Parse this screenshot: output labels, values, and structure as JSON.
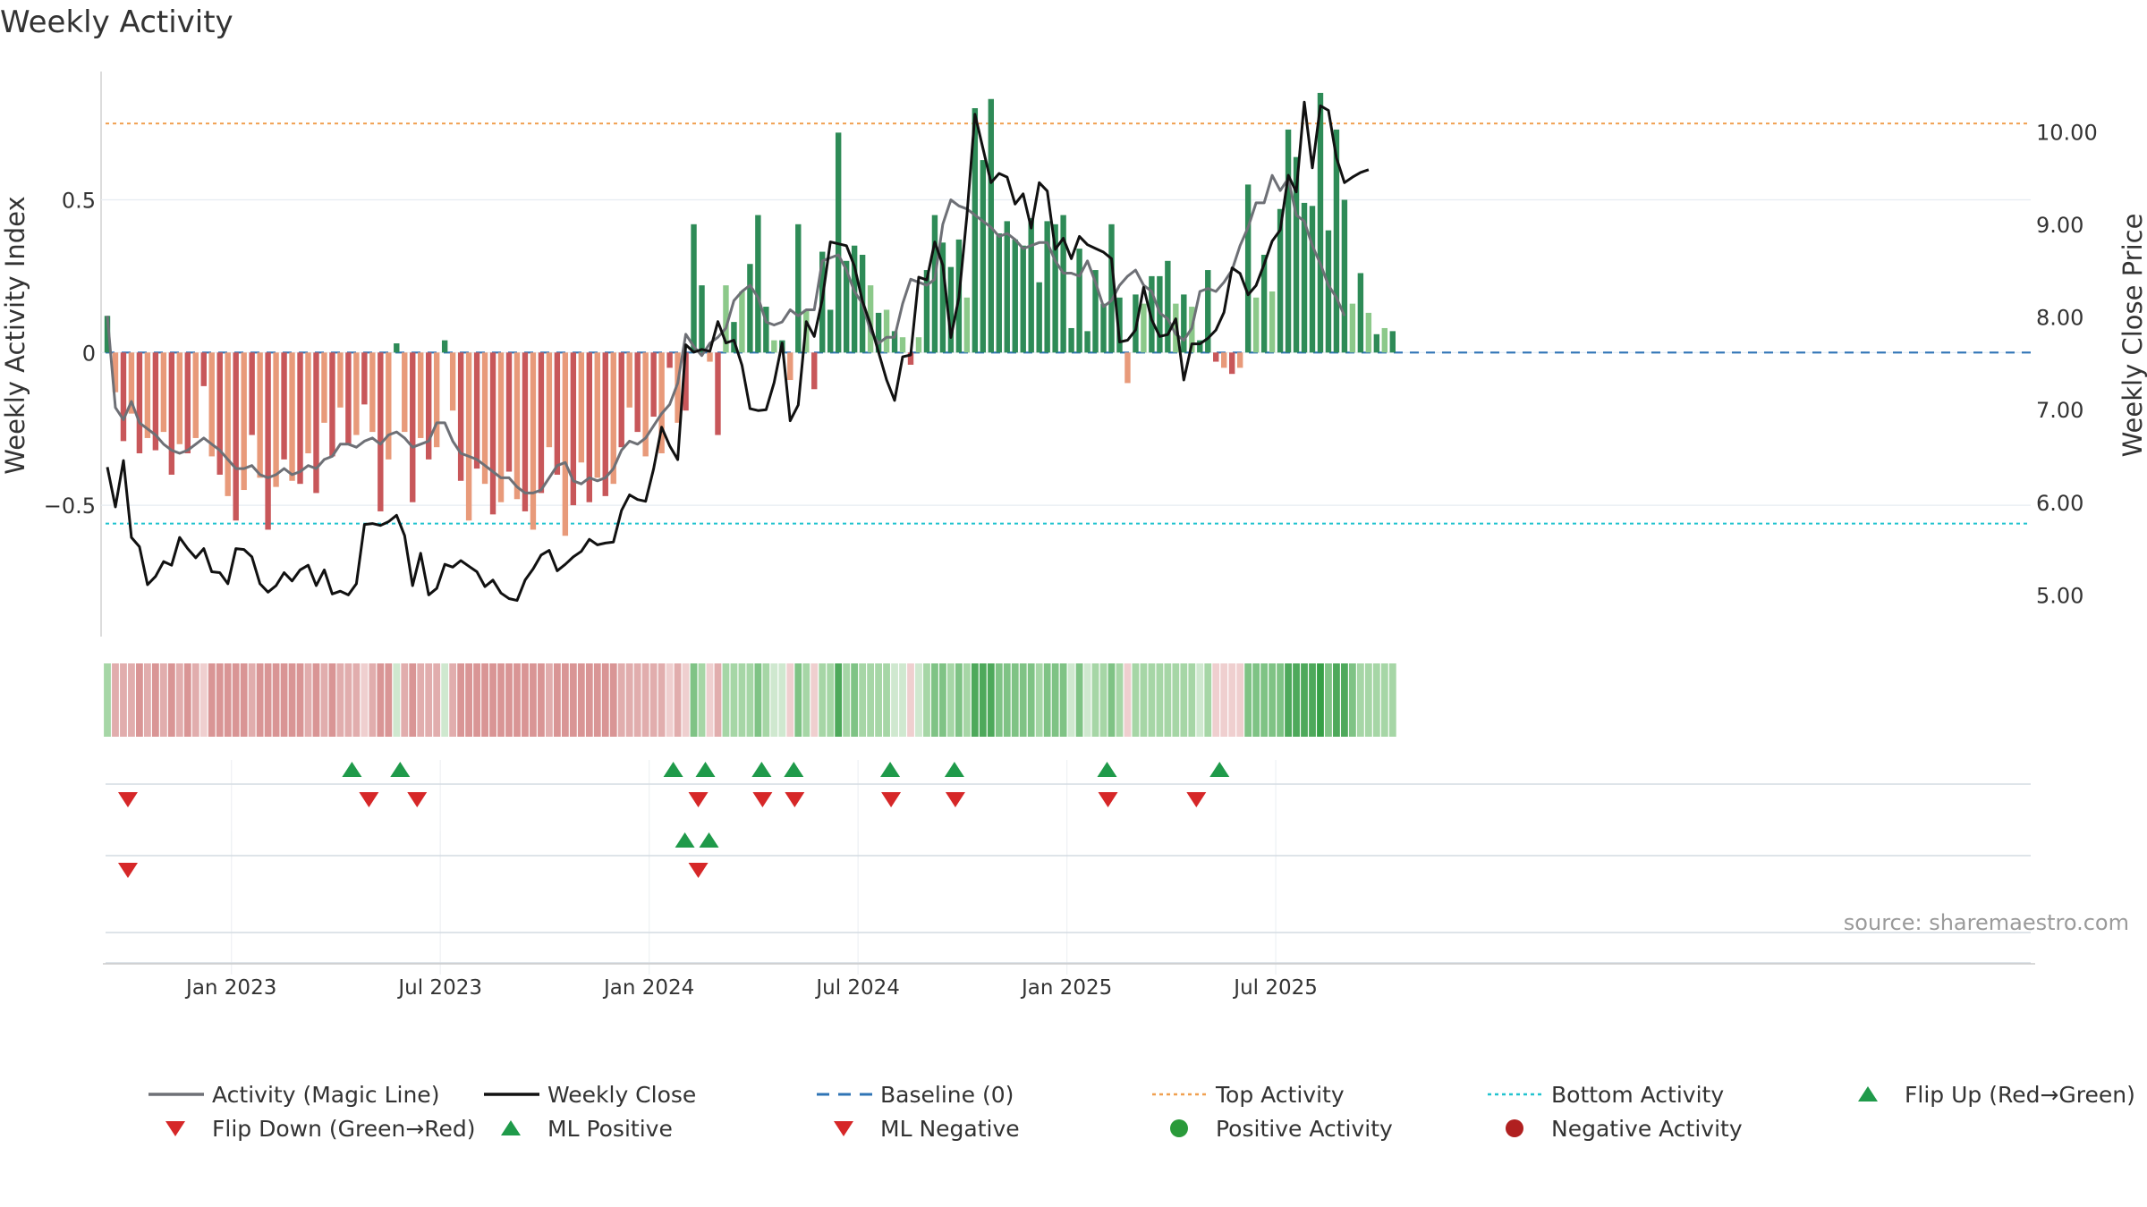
{
  "title": "Weekly Activity",
  "source": "source: sharemaestro.com",
  "colors": {
    "pos_strong": "#2e8b57",
    "pos_light": "#8cc98a",
    "neg_strong": "#c8575a",
    "neg_light": "#e89a7a",
    "magic_line": "#6e7076",
    "close_line": "#111111",
    "baseline": "#2f74b5",
    "top_line": "#f0a050",
    "bottom_line": "#22c3cf",
    "flip_up": "#1f9a4a",
    "flip_down": "#d62728",
    "pos_activity": "#2a9a3a",
    "neg_activity": "#b02020"
  },
  "chart_data": {
    "type": "bar+line",
    "title": "Weekly Activity",
    "ylabel_left": "Weekly Activity Index",
    "ylabel_right": "Weekly Close Price",
    "ylim_left": [
      -0.93,
      0.92
    ],
    "ylim_right": [
      4.55,
      10.65
    ],
    "yticks_left": [
      {
        "v": 0.5,
        "label": "0.5"
      },
      {
        "v": 0,
        "label": "0"
      },
      {
        "v": -0.5,
        "label": "−0.5"
      }
    ],
    "yticks_right": [
      {
        "v": 10,
        "label": "10.00"
      },
      {
        "v": 9,
        "label": "9.00"
      },
      {
        "v": 8,
        "label": "8.00"
      },
      {
        "v": 7,
        "label": "7.00"
      },
      {
        "v": 6,
        "label": "6.00"
      },
      {
        "v": 5,
        "label": "5.00"
      }
    ],
    "x_start": "2022-09-19",
    "x_ticks": [
      {
        "week": 15,
        "label": "Jan 2023"
      },
      {
        "week": 41,
        "label": "Jul 2023"
      },
      {
        "week": 67,
        "label": "Jan 2024"
      },
      {
        "week": 93,
        "label": "Jul 2024"
      },
      {
        "week": 119,
        "label": "Jan 2025"
      },
      {
        "week": 145,
        "label": "Jul 2025"
      }
    ],
    "top_activity": 0.75,
    "bottom_activity": -0.56,
    "activity": [
      0.12,
      -0.13,
      -0.29,
      -0.2,
      -0.33,
      -0.28,
      -0.32,
      -0.26,
      -0.4,
      -0.3,
      -0.33,
      -0.28,
      -0.11,
      -0.34,
      -0.4,
      -0.47,
      -0.55,
      -0.45,
      -0.27,
      -0.41,
      -0.58,
      -0.44,
      -0.35,
      -0.42,
      -0.43,
      -0.33,
      -0.46,
      -0.23,
      -0.34,
      -0.18,
      -0.3,
      -0.27,
      -0.17,
      -0.26,
      -0.52,
      -0.35,
      0.03,
      -0.26,
      -0.49,
      -0.28,
      -0.35,
      -0.31,
      0.04,
      -0.19,
      -0.42,
      -0.55,
      -0.38,
      -0.43,
      -0.53,
      -0.49,
      -0.39,
      -0.48,
      -0.52,
      -0.58,
      -0.46,
      -0.31,
      -0.4,
      -0.6,
      -0.5,
      -0.36,
      -0.49,
      -0.41,
      -0.47,
      -0.43,
      -0.31,
      -0.18,
      -0.26,
      -0.34,
      -0.21,
      -0.33,
      -0.05,
      -0.23,
      -0.19,
      0.42,
      0.22,
      -0.03,
      -0.27,
      0.22,
      0.1,
      0.2,
      0.29,
      0.45,
      0.15,
      0.04,
      0.04,
      -0.09,
      0.42,
      0.14,
      -0.12,
      0.33,
      0.14,
      0.72,
      0.3,
      0.35,
      0.32,
      0.22,
      0.13,
      0.14,
      0.07,
      0.05,
      -0.04,
      0.05,
      0.27,
      0.45,
      0.36,
      0.28,
      0.37,
      0.18,
      0.8,
      0.63,
      0.83,
      0.39,
      0.43,
      0.37,
      0.35,
      0.44,
      0.23,
      0.43,
      0.42,
      0.45,
      0.08,
      0.34,
      0.07,
      0.27,
      0.16,
      0.42,
      0.18,
      -0.1,
      0.19,
      0.16,
      0.25,
      0.25,
      0.3,
      0.16,
      0.19,
      0.15,
      0.04,
      0.27,
      -0.03,
      -0.05,
      -0.07,
      -0.05,
      0.55,
      0.18,
      0.32,
      0.2,
      0.47,
      0.73,
      0.64,
      0.49,
      0.48,
      0.85,
      0.4,
      0.73,
      0.5,
      0.16,
      0.26,
      0.13,
      0.06,
      0.08,
      0.07
    ],
    "magic_line": [
      0.12,
      -0.18,
      -0.22,
      -0.16,
      -0.23,
      -0.25,
      -0.27,
      -0.3,
      -0.32,
      -0.33,
      -0.32,
      -0.3,
      -0.28,
      -0.3,
      -0.32,
      -0.35,
      -0.38,
      -0.38,
      -0.37,
      -0.4,
      -0.41,
      -0.4,
      -0.38,
      -0.4,
      -0.39,
      -0.37,
      -0.38,
      -0.35,
      -0.34,
      -0.3,
      -0.3,
      -0.31,
      -0.29,
      -0.28,
      -0.3,
      -0.27,
      -0.26,
      -0.28,
      -0.31,
      -0.3,
      -0.29,
      -0.23,
      -0.23,
      -0.29,
      -0.33,
      -0.34,
      -0.35,
      -0.37,
      -0.39,
      -0.41,
      -0.41,
      -0.44,
      -0.46,
      -0.46,
      -0.45,
      -0.41,
      -0.37,
      -0.36,
      -0.42,
      -0.43,
      -0.41,
      -0.42,
      -0.41,
      -0.38,
      -0.32,
      -0.29,
      -0.3,
      -0.28,
      -0.24,
      -0.2,
      -0.17,
      -0.1,
      0.06,
      0.02,
      -0.01,
      0.03,
      0.05,
      0.08,
      0.17,
      0.2,
      0.22,
      0.18,
      0.1,
      0.09,
      0.1,
      0.14,
      0.12,
      0.14,
      0.14,
      0.3,
      0.31,
      0.32,
      0.27,
      0.2,
      0.16,
      0.07,
      0.03,
      0.05,
      0.05,
      0.16,
      0.24,
      0.23,
      0.22,
      0.24,
      0.42,
      0.5,
      0.48,
      0.47,
      0.45,
      0.43,
      0.41,
      0.38,
      0.39,
      0.37,
      0.34,
      0.35,
      0.36,
      0.36,
      0.3,
      0.26,
      0.26,
      0.25,
      0.3,
      0.23,
      0.15,
      0.17,
      0.22,
      0.25,
      0.27,
      0.22,
      0.2,
      0.13,
      0.11,
      0.06,
      0.04,
      0.08,
      0.2,
      0.21,
      0.2,
      0.23,
      0.27,
      0.35,
      0.41,
      0.49,
      0.49,
      0.58,
      0.53,
      0.57,
      0.45,
      0.43,
      0.35,
      0.29,
      0.22,
      0.18,
      0.12
    ],
    "weekly_close": [
      6.38,
      5.95,
      6.45,
      5.62,
      5.52,
      5.11,
      5.2,
      5.36,
      5.32,
      5.62,
      5.5,
      5.4,
      5.5,
      5.25,
      5.24,
      5.12,
      5.5,
      5.49,
      5.41,
      5.12,
      5.03,
      5.1,
      5.24,
      5.15,
      5.27,
      5.32,
      5.1,
      5.27,
      5.01,
      5.04,
      5.0,
      5.12,
      5.76,
      5.77,
      5.75,
      5.79,
      5.86,
      5.64,
      5.1,
      5.45,
      5.0,
      5.07,
      5.33,
      5.3,
      5.37,
      5.31,
      5.25,
      5.09,
      5.16,
      5.02,
      4.96,
      4.94,
      5.16,
      5.28,
      5.43,
      5.48,
      5.26,
      5.33,
      5.41,
      5.47,
      5.6,
      5.54,
      5.56,
      5.57,
      5.91,
      6.08,
      6.03,
      6.01,
      6.36,
      6.81,
      6.61,
      6.46,
      7.7,
      7.62,
      7.65,
      7.63,
      7.95,
      7.72,
      7.75,
      7.48,
      7.01,
      6.99,
      7.0,
      7.29,
      7.72,
      6.88,
      7.05,
      7.95,
      7.79,
      8.19,
      8.81,
      8.79,
      8.77,
      8.55,
      8.17,
      7.92,
      7.62,
      7.32,
      7.1,
      7.57,
      7.59,
      8.43,
      8.4,
      8.81,
      8.56,
      7.78,
      8.21,
      9.1,
      10.19,
      9.82,
      9.45,
      9.55,
      9.51,
      9.22,
      9.33,
      8.96,
      9.45,
      9.36,
      8.73,
      8.85,
      8.63,
      8.87,
      8.78,
      8.74,
      8.7,
      8.63,
      7.73,
      7.75,
      7.86,
      8.32,
      7.97,
      7.79,
      7.81,
      7.98,
      7.32,
      7.71,
      7.71,
      7.77,
      7.86,
      8.05,
      8.53,
      8.47,
      8.24,
      8.34,
      8.57,
      8.82,
      8.94,
      9.53,
      9.35,
      10.32,
      9.61,
      10.28,
      10.23,
      9.72,
      9.45,
      9.51,
      9.56,
      9.59
    ],
    "heatmap_shades": [
      2,
      -2,
      -2,
      -2,
      -3,
      -2,
      -3,
      -2,
      -3,
      -2,
      -3,
      -2,
      -1,
      -3,
      -3,
      -3,
      -3,
      -3,
      -2,
      -3,
      -3,
      -3,
      -3,
      -3,
      -3,
      -2,
      -3,
      -2,
      -3,
      -2,
      -2,
      -2,
      -1,
      -2,
      -3,
      -3,
      1,
      -2,
      -3,
      -2,
      -2,
      -2,
      1,
      -2,
      -3,
      -3,
      -3,
      -3,
      -3,
      -3,
      -3,
      -3,
      -3,
      -3,
      -3,
      -2,
      -3,
      -3,
      -3,
      -3,
      -3,
      -3,
      -3,
      -3,
      -2,
      -2,
      -2,
      -2,
      -2,
      -2,
      -1,
      -2,
      -1,
      3,
      2,
      -1,
      -2,
      2,
      2,
      2,
      2,
      3,
      2,
      1,
      1,
      -1,
      3,
      2,
      -1,
      2,
      2,
      4,
      2,
      3,
      2,
      2,
      2,
      2,
      1,
      1,
      -1,
      1,
      2,
      3,
      3,
      2,
      3,
      2,
      4,
      4,
      4,
      3,
      3,
      3,
      3,
      3,
      2,
      3,
      3,
      3,
      1,
      3,
      1,
      2,
      2,
      3,
      2,
      -1,
      2,
      2,
      2,
      2,
      2,
      2,
      2,
      2,
      1,
      2,
      -1,
      -1,
      -1,
      -1,
      3,
      3,
      3,
      3,
      3,
      4,
      4,
      4,
      4,
      5,
      3,
      4,
      4,
      3,
      2,
      2,
      2,
      2,
      2
    ],
    "flip_events": {
      "row1_up_weeks": [
        30,
        36,
        70,
        74,
        81,
        85,
        97,
        105,
        124,
        138
      ],
      "row1_down_weeks": [
        1,
        31,
        37,
        72,
        80,
        84,
        96,
        104,
        123,
        134
      ],
      "row2_up_weeks": [
        71,
        74
      ],
      "row2_down_weeks": [
        1,
        72
      ]
    }
  },
  "legend": [
    {
      "label": "Activity (Magic Line)",
      "symbol": "line-gray"
    },
    {
      "label": "Weekly Close",
      "symbol": "line-black"
    },
    {
      "label": "Baseline (0)",
      "symbol": "dashed-blue"
    },
    {
      "label": "Top Activity",
      "symbol": "dotted-orange"
    },
    {
      "label": "Bottom Activity",
      "symbol": "dotted-cyan"
    },
    {
      "label": "Flip Up (Red→Green)",
      "symbol": "triangle-up-green"
    },
    {
      "label": "Flip Down (Green→Red)",
      "symbol": "triangle-down-red"
    },
    {
      "label": "ML Positive",
      "symbol": "triangle-up-green"
    },
    {
      "label": "ML Negative",
      "symbol": "triangle-down-red"
    },
    {
      "label": "Positive Activity",
      "symbol": "dot-green"
    },
    {
      "label": "Negative Activity",
      "symbol": "dot-red"
    }
  ]
}
